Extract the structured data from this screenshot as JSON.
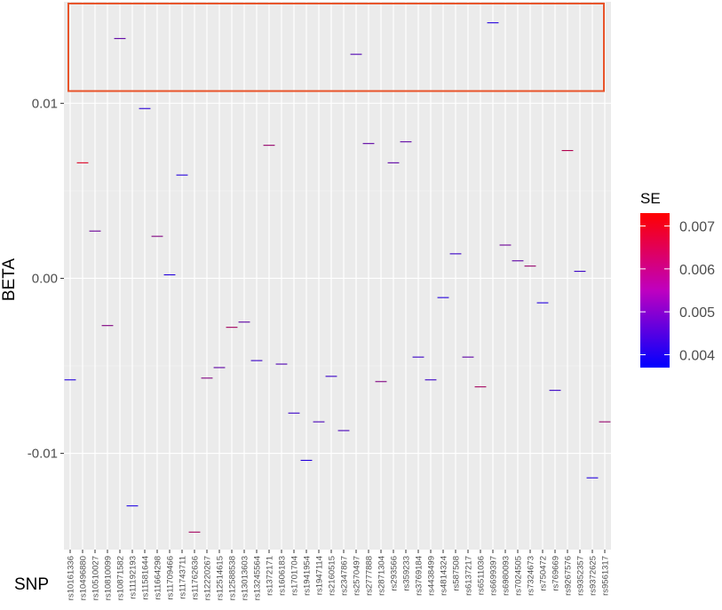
{
  "chart_data": {
    "type": "scatter",
    "mark": "horizontal-dash",
    "xlabel": "SNP",
    "ylabel": "BETA",
    "ylim": [
      -0.0155,
      0.0158
    ],
    "yticks": [
      -0.01,
      0.0,
      0.01
    ],
    "ytick_labels": [
      "-0.01",
      "0.00",
      "0.01"
    ],
    "grid": true,
    "legend": {
      "title": "SE",
      "placement": "right",
      "low": 0.0037,
      "high": 0.0073,
      "ticks": [
        0.004,
        0.005,
        0.006,
        0.007
      ],
      "tick_labels": [
        "0.004",
        "0.005",
        "0.006",
        "0.007"
      ],
      "color_low": "#0000FF",
      "color_high": "#FF0000"
    },
    "highlight": {
      "ymin": 0.0107,
      "ymax": 0.0157,
      "color": "#E8542A"
    },
    "points": [
      {
        "snp": "rs10161336",
        "beta": -0.0058,
        "se": 0.0042
      },
      {
        "snp": "rs10496880",
        "beta": 0.0066,
        "se": 0.0068
      },
      {
        "snp": "rs10510027",
        "beta": 0.0027,
        "se": 0.0052
      },
      {
        "snp": "rs10810099",
        "beta": -0.0027,
        "se": 0.0055
      },
      {
        "snp": "rs10871582",
        "beta": 0.0137,
        "se": 0.005
      },
      {
        "snp": "rs11192193",
        "beta": -0.013,
        "se": 0.0041
      },
      {
        "snp": "rs11581644",
        "beta": 0.0097,
        "se": 0.0043
      },
      {
        "snp": "rs11664298",
        "beta": 0.0024,
        "se": 0.0055
      },
      {
        "snp": "rs11709466",
        "beta": 0.0002,
        "se": 0.0042
      },
      {
        "snp": "rs11743711",
        "beta": 0.0059,
        "se": 0.0042
      },
      {
        "snp": "rs11762636",
        "beta": -0.0145,
        "se": 0.006
      },
      {
        "snp": "rs12220267",
        "beta": -0.0057,
        "se": 0.0055
      },
      {
        "snp": "rs12514615",
        "beta": -0.0051,
        "se": 0.005
      },
      {
        "snp": "rs12588538",
        "beta": -0.0028,
        "se": 0.006
      },
      {
        "snp": "rs13013603",
        "beta": -0.0025,
        "se": 0.005
      },
      {
        "snp": "rs13245564",
        "beta": -0.0047,
        "se": 0.0045
      },
      {
        "snp": "rs1372171",
        "beta": 0.0076,
        "se": 0.0058
      },
      {
        "snp": "rs1606183",
        "beta": -0.0049,
        "se": 0.0048
      },
      {
        "snp": "rs1701704",
        "beta": -0.0077,
        "se": 0.0045
      },
      {
        "snp": "rs1941954",
        "beta": -0.0104,
        "se": 0.0042
      },
      {
        "snp": "rs1947114",
        "beta": -0.0082,
        "se": 0.0047
      },
      {
        "snp": "rs2160515",
        "beta": -0.0056,
        "se": 0.0045
      },
      {
        "snp": "rs2347867",
        "beta": -0.0087,
        "se": 0.0047
      },
      {
        "snp": "rs2570497",
        "beta": 0.0128,
        "se": 0.0048
      },
      {
        "snp": "rs2777888",
        "beta": 0.0077,
        "se": 0.005
      },
      {
        "snp": "rs2871304",
        "beta": -0.0059,
        "se": 0.0055
      },
      {
        "snp": "rs293566",
        "beta": 0.0066,
        "se": 0.005
      },
      {
        "snp": "rs359233",
        "beta": 0.0078,
        "se": 0.005
      },
      {
        "snp": "rs3769184",
        "beta": -0.0045,
        "se": 0.0045
      },
      {
        "snp": "rs4438499",
        "beta": -0.0058,
        "se": 0.0045
      },
      {
        "snp": "rs4814324",
        "beta": -0.0011,
        "se": 0.0042
      },
      {
        "snp": "rs587508",
        "beta": 0.0014,
        "se": 0.0045
      },
      {
        "snp": "rs6137217",
        "beta": -0.0045,
        "se": 0.005
      },
      {
        "snp": "rs6511036",
        "beta": -0.0062,
        "se": 0.006
      },
      {
        "snp": "rs6699397",
        "beta": 0.0146,
        "se": 0.0042
      },
      {
        "snp": "rs6980093",
        "beta": 0.0019,
        "se": 0.0052
      },
      {
        "snp": "rs7024505",
        "beta": 0.001,
        "se": 0.005
      },
      {
        "snp": "rs7324673",
        "beta": 0.0007,
        "se": 0.0058
      },
      {
        "snp": "rs750472",
        "beta": -0.0014,
        "se": 0.0042
      },
      {
        "snp": "rs769669",
        "beta": -0.0064,
        "se": 0.0045
      },
      {
        "snp": "rs9267576",
        "beta": 0.0073,
        "se": 0.0062
      },
      {
        "snp": "rs9352357",
        "beta": 0.0004,
        "se": 0.0045
      },
      {
        "snp": "rs9372625",
        "beta": -0.0114,
        "se": 0.0042
      },
      {
        "snp": "rs9561317",
        "beta": -0.0082,
        "se": 0.0058
      }
    ]
  }
}
